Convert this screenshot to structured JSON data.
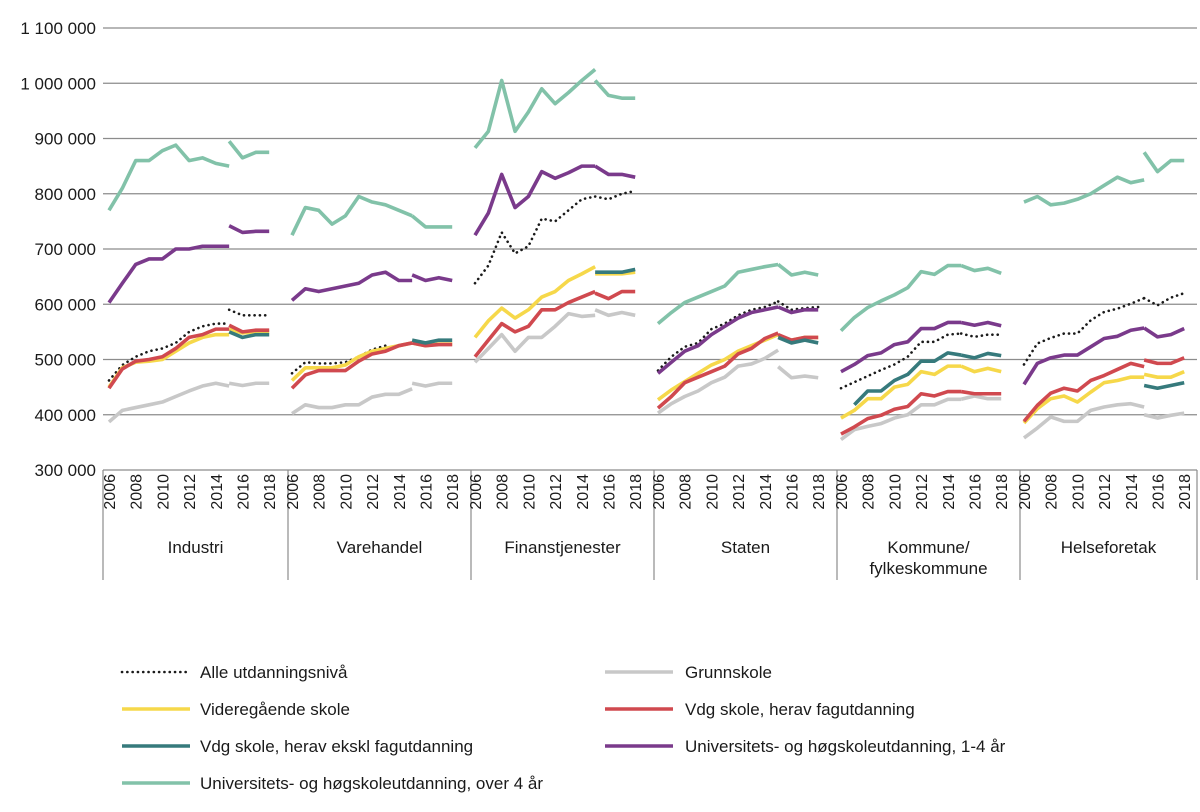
{
  "chart_data": {
    "type": "line",
    "title": "",
    "xlabel": "",
    "ylabel": "",
    "ylim": [
      300000,
      1100000
    ],
    "yticks": [
      300000,
      400000,
      500000,
      600000,
      700000,
      800000,
      900000,
      1000000,
      1100000
    ],
    "ytick_labels": [
      "300 000",
      "400 000",
      "500 000",
      "600 000",
      "700 000",
      "800 000",
      "900 000",
      "1 000 000",
      "1 100 000"
    ],
    "grid": "horizontal",
    "legend_position": "bottom",
    "x_years": [
      "2006",
      "2007",
      "2008",
      "2009",
      "2010",
      "2011",
      "2012",
      "2013",
      "2014",
      "2015",
      "2016",
      "2017",
      "2018"
    ],
    "x_tick_labels": [
      "2006",
      "2008",
      "2010",
      "2012",
      "2014",
      "2016",
      "2018"
    ],
    "note_segments": "each series has values for 2006-2015 (pre) and 2015-2018 (post)",
    "series": [
      {
        "key": "alle",
        "name": "Alle utdanningsnivå",
        "color": "#1a1a1a",
        "dotted": true
      },
      {
        "key": "grunn",
        "name": "Grunnskole",
        "color": "#c8c8c8"
      },
      {
        "key": "vgs",
        "name": "Videregående skole",
        "color": "#f6d84a"
      },
      {
        "key": "fag",
        "name": "Vdg skole, herav fagutdanning",
        "color": "#d0494f"
      },
      {
        "key": "ekskl",
        "name": "Vdg skole, herav ekskl fagutdanning",
        "color": "#367a7c"
      },
      {
        "key": "uh14",
        "name": "Universitets- og høgskoleutdanning, 1-4 år",
        "color": "#7a3a8b"
      },
      {
        "key": "uh4",
        "name": "Universitets- og høgskoleutdanning, over 4 år",
        "color": "#82c2a9"
      }
    ],
    "panels": [
      {
        "name": "Industri",
        "data": {
          "alle": {
            "pre": [
              462000,
              490000,
              505000,
              515000,
              520000,
              530000,
              550000,
              560000,
              565000,
              565000
            ],
            "post": [
              590000,
              580000,
              580000,
              580000
            ]
          },
          "grunn": {
            "pre": [
              387000,
              408000,
              413000,
              418000,
              423000,
              433000,
              443000,
              452000,
              457000,
              452000
            ],
            "post": [
              457000,
              453000,
              457000,
              457000
            ]
          },
          "vgs": {
            "pre": [
              450000,
              485000,
              495000,
              497000,
              500000,
              515000,
              530000,
              540000,
              545000,
              545000
            ],
            "post": [
              555000,
              548000,
              550000,
              550000
            ]
          },
          "fag": {
            "pre": [
              448000,
              483000,
              497000,
              500000,
              505000,
              520000,
              540000,
              545000,
              555000,
              555000
            ],
            "post": [
              562000,
              550000,
              553000,
              553000
            ]
          },
          "ekskl": {
            "pre": [
              null,
              null,
              null,
              null,
              null,
              null,
              null,
              null,
              null,
              null
            ],
            "post": [
              550000,
              540000,
              545000,
              545000
            ]
          },
          "uh14": {
            "pre": [
              603000,
              638000,
              672000,
              682000,
              682000,
              700000,
              700000,
              705000,
              705000,
              705000
            ],
            "post": [
              742000,
              730000,
              732000,
              732000
            ]
          },
          "uh4": {
            "pre": [
              770000,
              810000,
              860000,
              860000,
              878000,
              888000,
              860000,
              865000,
              855000,
              850000
            ],
            "post": [
              895000,
              865000,
              875000,
              875000
            ]
          }
        }
      },
      {
        "name": "Varehandel",
        "data": {
          "alle": {
            "pre": [
              475000,
              495000,
              493000,
              493000,
              495000,
              505000,
              518000,
              525000,
              null,
              null
            ],
            "post": [
              null,
              null,
              null,
              null
            ]
          },
          "grunn": {
            "pre": [
              402000,
              418000,
              413000,
              413000,
              418000,
              418000,
              432000,
              437000,
              437000,
              447000
            ],
            "post": [
              457000,
              452000,
              457000,
              457000
            ]
          },
          "vgs": {
            "pre": [
              462000,
              485000,
              485000,
              485000,
              490000,
              505000,
              515000,
              520000,
              525000,
              530000
            ],
            "post": [
              530000,
              525000,
              528000,
              528000
            ]
          },
          "fag": {
            "pre": [
              448000,
              472000,
              480000,
              480000,
              480000,
              497000,
              510000,
              515000,
              525000,
              530000
            ],
            "post": [
              530000,
              525000,
              527000,
              527000
            ]
          },
          "ekskl": {
            "pre": [
              null,
              null,
              null,
              null,
              null,
              null,
              null,
              null,
              null,
              null
            ],
            "post": [
              535000,
              530000,
              535000,
              535000
            ]
          },
          "uh14": {
            "pre": [
              607000,
              628000,
              623000,
              628000,
              633000,
              638000,
              653000,
              658000,
              643000,
              643000
            ],
            "post": [
              653000,
              643000,
              648000,
              643000
            ]
          },
          "uh4": {
            "pre": [
              725000,
              775000,
              770000,
              745000,
              760000,
              795000,
              785000,
              780000,
              770000,
              760000
            ],
            "post": [
              760000,
              740000,
              740000,
              740000
            ]
          }
        }
      },
      {
        "name": "Finanstjenester",
        "data": {
          "alle": {
            "pre": [
              638000,
              670000,
              730000,
              692000,
              705000,
              755000,
              750000,
              770000,
              790000,
              795000
            ],
            "post": [
              795000,
              790000,
              800000,
              805000
            ]
          },
          "grunn": {
            "pre": [
              495000,
              520000,
              545000,
              515000,
              540000,
              540000,
              560000,
              583000,
              578000,
              580000
            ],
            "post": [
              590000,
              580000,
              585000,
              580000
            ]
          },
          "vgs": {
            "pre": [
              540000,
              570000,
              593000,
              575000,
              590000,
              613000,
              623000,
              643000,
              655000,
              668000
            ],
            "post": [
              655000,
              655000,
              655000,
              658000
            ]
          },
          "fag": {
            "pre": [
              505000,
              535000,
              565000,
              550000,
              560000,
              590000,
              590000,
              603000,
              613000,
              623000
            ],
            "post": [
              620000,
              610000,
              623000,
              623000
            ]
          },
          "ekskl": {
            "pre": [
              null,
              null,
              null,
              null,
              null,
              null,
              null,
              null,
              null,
              null
            ],
            "post": [
              658000,
              658000,
              658000,
              663000
            ]
          },
          "uh14": {
            "pre": [
              725000,
              765000,
              835000,
              775000,
              795000,
              840000,
              828000,
              838000,
              850000,
              850000
            ],
            "post": [
              850000,
              835000,
              835000,
              830000
            ]
          },
          "uh4": {
            "pre": [
              883000,
              913000,
              1005000,
              913000,
              948000,
              990000,
              963000,
              983000,
              1005000,
              1025000
            ],
            "post": [
              1005000,
              978000,
              973000,
              973000
            ]
          }
        }
      },
      {
        "name": "Staten",
        "data": {
          "alle": {
            "pre": [
              480000,
              505000,
              523000,
              530000,
              555000,
              565000,
              580000,
              590000,
              595000,
              605000
            ],
            "post": [
              605000,
              590000,
              593000,
              595000
            ]
          },
          "grunn": {
            "pre": [
              403000,
              420000,
              433000,
              443000,
              458000,
              468000,
              488000,
              492000,
              502000,
              517000
            ],
            "post": [
              487000,
              467000,
              470000,
              467000
            ]
          },
          "vgs": {
            "pre": [
              427000,
              445000,
              460000,
              475000,
              490000,
              500000,
              515000,
              525000,
              535000,
              545000
            ],
            "post": [
              540000,
              535000,
              540000,
              540000
            ]
          },
          "fag": {
            "pre": [
              412000,
              433000,
              458000,
              468000,
              478000,
              488000,
              510000,
              520000,
              538000,
              548000
            ],
            "post": [
              545000,
              535000,
              540000,
              540000
            ]
          },
          "ekskl": {
            "pre": [
              null,
              null,
              null,
              null,
              null,
              null,
              null,
              null,
              null,
              null
            ],
            "post": [
              540000,
              530000,
              535000,
              530000
            ]
          },
          "uh14": {
            "pre": [
              475000,
              495000,
              515000,
              525000,
              545000,
              560000,
              575000,
              585000,
              590000,
              595000
            ],
            "post": [
              595000,
              585000,
              590000,
              590000
            ]
          },
          "uh4": {
            "pre": [
              565000,
              585000,
              603000,
              613000,
              623000,
              633000,
              658000,
              663000,
              668000,
              672000
            ],
            "post": [
              672000,
              653000,
              658000,
              653000
            ]
          }
        }
      },
      {
        "name": "Kommune/ fylkeskommune",
        "data": {
          "alle": {
            "pre": [
              448000,
              459000,
              470000,
              481000,
              491000,
              505000,
              532000,
              532000,
              545000,
              547000
            ],
            "post": [
              547000,
              541000,
              545000,
              545000
            ]
          },
          "grunn": {
            "pre": [
              355000,
              373000,
              379000,
              384000,
              394000,
              400000,
              418000,
              418000,
              428000,
              428000
            ],
            "post": [
              428000,
              434000,
              429000,
              429000
            ]
          },
          "vgs": {
            "pre": [
              394000,
              408000,
              429000,
              429000,
              450000,
              455000,
              478000,
              473000,
              488000,
              488000
            ],
            "post": [
              488000,
              478000,
              484000,
              478000
            ]
          },
          "fag": {
            "pre": [
              365000,
              378000,
              393000,
              399000,
              410000,
              415000,
              438000,
              434000,
              442000,
              442000
            ],
            "post": [
              442000,
              438000,
              438000,
              438000
            ]
          },
          "ekskl": {
            "pre": [
              null,
              418000,
              443000,
              443000,
              462000,
              473000,
              497000,
              497000,
              512000,
              508000
            ],
            "post": [
              508000,
              503000,
              511000,
              507000
            ]
          },
          "uh14": {
            "pre": [
              478000,
              491000,
              507000,
              512000,
              527000,
              532000,
              556000,
              556000,
              567000,
              567000
            ],
            "post": [
              567000,
              562000,
              567000,
              561000
            ]
          },
          "uh4": {
            "pre": [
              552000,
              576000,
              594000,
              606000,
              617000,
              630000,
              659000,
              654000,
              670000,
              670000
            ],
            "post": [
              670000,
              661000,
              665000,
              656000
            ]
          }
        }
      },
      {
        "name": "Helseforetak",
        "data": {
          "alle": {
            "pre": [
              491000,
              529000,
              539000,
              547000,
              547000,
              571000,
              586000,
              592000,
              601000,
              611000
            ],
            "post": [
              611000,
              598000,
              612000,
              620000
            ]
          },
          "grunn": {
            "pre": [
              358000,
              376000,
              396000,
              388000,
              388000,
              408000,
              414000,
              418000,
              420000,
              414000
            ],
            "post": [
              400000,
              394000,
              399000,
              403000
            ]
          },
          "vgs": {
            "pre": [
              385000,
              411000,
              429000,
              434000,
              423000,
              441000,
              458000,
              462000,
              468000,
              468000
            ],
            "post": [
              473000,
              468000,
              468000,
              478000
            ]
          },
          "fag": {
            "pre": [
              388000,
              417000,
              439000,
              448000,
              443000,
              462000,
              471000,
              482000,
              493000,
              487000
            ],
            "post": [
              499000,
              493000,
              493000,
              503000
            ]
          },
          "ekskl": {
            "pre": [
              null,
              null,
              null,
              null,
              null,
              null,
              null,
              null,
              null,
              null
            ],
            "post": [
              453000,
              448000,
              453000,
              458000
            ]
          },
          "uh14": {
            "pre": [
              455000,
              493000,
              503000,
              508000,
              508000,
              523000,
              538000,
              542000,
              553000,
              557000
            ],
            "post": [
              557000,
              541000,
              545000,
              556000
            ]
          },
          "uh4": {
            "pre": [
              785000,
              795000,
              780000,
              783000,
              790000,
              800000,
              815000,
              830000,
              820000,
              825000
            ],
            "post": [
              875000,
              840000,
              860000,
              860000
            ]
          }
        }
      }
    ]
  }
}
